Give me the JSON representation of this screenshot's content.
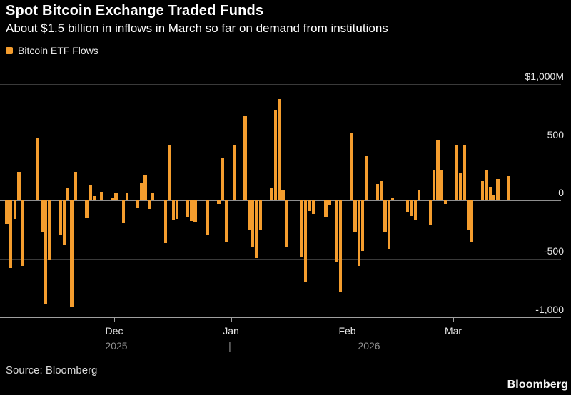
{
  "header": {
    "title": "Spot Bitcoin Exchange Traded Funds",
    "subtitle": "About $1.5 billion in inflows in March so far on demand from institutions"
  },
  "legend": {
    "label": "Bitcoin ETF Flows"
  },
  "footer": {
    "source": "Source: Bloomberg",
    "brand": "Bloomberg"
  },
  "colors": {
    "background": "#000000",
    "bar": "#F49D2E",
    "grid": "#3a3a3a",
    "zero_line": "#8f8f8f",
    "axis_line": "#9f9f9f",
    "label": "#e6e6e6",
    "muted": "#8f8f8f"
  },
  "chart_data": {
    "type": "bar",
    "title": "Spot Bitcoin Exchange Traded Funds",
    "series_name": "Bitcoin ETF Flows",
    "unit": "USD millions",
    "ylim": [
      -1000,
      1000
    ],
    "grid": true,
    "y_ticks": [
      {
        "value": 1000,
        "label": "$1,000M"
      },
      {
        "value": 500,
        "label": "500"
      },
      {
        "value": 0,
        "label": "0"
      },
      {
        "value": -500,
        "label": "-500"
      },
      {
        "value": -1000,
        "label": "-1,000"
      }
    ],
    "x_ticks": [
      {
        "label": "Dec",
        "x": 160
      },
      {
        "label": "Jan",
        "x": 323.5
      },
      {
        "label": "Feb",
        "x": 486.5
      },
      {
        "label": "Mar",
        "x": 635
      }
    ],
    "x_year_labels": [
      {
        "label": "2025",
        "x": 163
      },
      {
        "label": "|",
        "x": 322
      },
      {
        "label": "2026",
        "x": 517
      }
    ],
    "bars": [
      {
        "x": 9.7,
        "v": -200
      },
      {
        "x": 15.2,
        "v": -580
      },
      {
        "x": 21.0,
        "v": -155
      },
      {
        "x": 26.3,
        "v": 245
      },
      {
        "x": 31.6,
        "v": -560
      },
      {
        "x": 52.9,
        "v": 540
      },
      {
        "x": 58.8,
        "v": -270
      },
      {
        "x": 63.6,
        "v": -885
      },
      {
        "x": 68.9,
        "v": -510
      },
      {
        "x": 84.7,
        "v": -290
      },
      {
        "x": 89.9,
        "v": -385
      },
      {
        "x": 94.9,
        "v": 115
      },
      {
        "x": 100.4,
        "v": -920
      },
      {
        "x": 105.6,
        "v": 250
      },
      {
        "x": 121.5,
        "v": -150
      },
      {
        "x": 126.8,
        "v": 135
      },
      {
        "x": 132.1,
        "v": 38
      },
      {
        "x": 142.3,
        "v": 75
      },
      {
        "x": 157.4,
        "v": 25
      },
      {
        "x": 162.7,
        "v": 63
      },
      {
        "x": 172.8,
        "v": -195
      },
      {
        "x": 178.1,
        "v": 67
      },
      {
        "x": 192.9,
        "v": -65
      },
      {
        "x": 198.2,
        "v": 150
      },
      {
        "x": 203.5,
        "v": 220
      },
      {
        "x": 208.8,
        "v": -73
      },
      {
        "x": 214.1,
        "v": 70
      },
      {
        "x": 232.2,
        "v": -365
      },
      {
        "x": 237.5,
        "v": 473
      },
      {
        "x": 242.8,
        "v": -165
      },
      {
        "x": 248.1,
        "v": -155
      },
      {
        "x": 262.9,
        "v": -145
      },
      {
        "x": 268.2,
        "v": -175
      },
      {
        "x": 273.5,
        "v": -187
      },
      {
        "x": 291.2,
        "v": -290
      },
      {
        "x": 306.5,
        "v": -27
      },
      {
        "x": 311.8,
        "v": 370
      },
      {
        "x": 317.1,
        "v": -360
      },
      {
        "x": 328.2,
        "v": 480
      },
      {
        "x": 343.6,
        "v": 730
      },
      {
        "x": 348.9,
        "v": -250
      },
      {
        "x": 354.2,
        "v": -405
      },
      {
        "x": 359.5,
        "v": -495
      },
      {
        "x": 364.8,
        "v": -250
      },
      {
        "x": 380.6,
        "v": 115
      },
      {
        "x": 385.9,
        "v": 780
      },
      {
        "x": 391.2,
        "v": 870
      },
      {
        "x": 396.5,
        "v": 94
      },
      {
        "x": 401.8,
        "v": -400
      },
      {
        "x": 422.9,
        "v": -485
      },
      {
        "x": 428.2,
        "v": -700
      },
      {
        "x": 433.5,
        "v": -88
      },
      {
        "x": 438.8,
        "v": -115
      },
      {
        "x": 456.6,
        "v": -145
      },
      {
        "x": 461.9,
        "v": -38
      },
      {
        "x": 471.9,
        "v": -530
      },
      {
        "x": 477.2,
        "v": -790
      },
      {
        "x": 492.2,
        "v": 575
      },
      {
        "x": 497.5,
        "v": -270
      },
      {
        "x": 502.8,
        "v": -560
      },
      {
        "x": 508.1,
        "v": -435
      },
      {
        "x": 513.4,
        "v": 380
      },
      {
        "x": 528.9,
        "v": 146
      },
      {
        "x": 534.2,
        "v": 170
      },
      {
        "x": 539.5,
        "v": -270
      },
      {
        "x": 544.8,
        "v": -415
      },
      {
        "x": 550.1,
        "v": 25
      },
      {
        "x": 571.2,
        "v": -105
      },
      {
        "x": 576.5,
        "v": -135
      },
      {
        "x": 581.8,
        "v": -165
      },
      {
        "x": 587.1,
        "v": 90
      },
      {
        "x": 602.8,
        "v": -205
      },
      {
        "x": 608.1,
        "v": 265
      },
      {
        "x": 613.4,
        "v": 520
      },
      {
        "x": 618.7,
        "v": 260
      },
      {
        "x": 624.0,
        "v": -27
      },
      {
        "x": 639.9,
        "v": 480
      },
      {
        "x": 645.2,
        "v": 240
      },
      {
        "x": 650.5,
        "v": 475
      },
      {
        "x": 655.8,
        "v": -250
      },
      {
        "x": 661.1,
        "v": -355
      },
      {
        "x": 676.2,
        "v": 167
      },
      {
        "x": 681.5,
        "v": 260
      },
      {
        "x": 686.8,
        "v": 119
      },
      {
        "x": 692.1,
        "v": 52
      },
      {
        "x": 697.4,
        "v": 187
      },
      {
        "x": 712.2,
        "v": 210
      }
    ]
  }
}
